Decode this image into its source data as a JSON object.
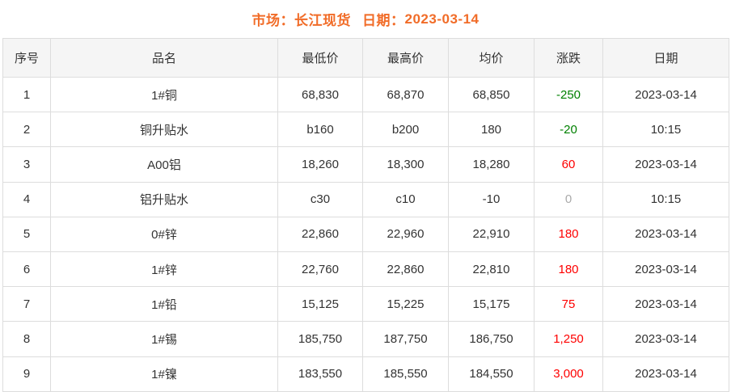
{
  "title": {
    "market_label": "市场：",
    "market_value": "长江现货",
    "date_label": "日期：",
    "date_value": "2023-03-14"
  },
  "table": {
    "columns": [
      "序号",
      "品名",
      "最低价",
      "最高价",
      "均价",
      "涨跌",
      "日期"
    ],
    "rows": [
      {
        "no": "1",
        "name": "1#铜",
        "low": "68,830",
        "high": "68,870",
        "avg": "68,850",
        "change": "-250",
        "trend": "down",
        "date": "2023-03-14"
      },
      {
        "no": "2",
        "name": "铜升贴水",
        "low": "b160",
        "high": "b200",
        "avg": "180",
        "change": "-20",
        "trend": "down",
        "date": "10:15"
      },
      {
        "no": "3",
        "name": "A00铝",
        "low": "18,260",
        "high": "18,300",
        "avg": "18,280",
        "change": "60",
        "trend": "up",
        "date": "2023-03-14"
      },
      {
        "no": "4",
        "name": "铝升贴水",
        "low": "c30",
        "high": "c10",
        "avg": "-10",
        "change": "0",
        "trend": "flat",
        "date": "10:15"
      },
      {
        "no": "5",
        "name": "0#锌",
        "low": "22,860",
        "high": "22,960",
        "avg": "22,910",
        "change": "180",
        "trend": "up",
        "date": "2023-03-14"
      },
      {
        "no": "6",
        "name": "1#锌",
        "low": "22,760",
        "high": "22,860",
        "avg": "22,810",
        "change": "180",
        "trend": "up",
        "date": "2023-03-14"
      },
      {
        "no": "7",
        "name": "1#铅",
        "low": "15,125",
        "high": "15,225",
        "avg": "15,175",
        "change": "75",
        "trend": "up",
        "date": "2023-03-14"
      },
      {
        "no": "8",
        "name": "1#锡",
        "low": "185,750",
        "high": "187,750",
        "avg": "186,750",
        "change": "1,250",
        "trend": "up",
        "date": "2023-03-14"
      },
      {
        "no": "9",
        "name": "1#镍",
        "low": "183,550",
        "high": "185,550",
        "avg": "184,550",
        "change": "3,000",
        "trend": "up",
        "date": "2023-03-14"
      }
    ]
  },
  "colors": {
    "accent_orange": "#f16c28",
    "up_red": "#fe0000",
    "down_green": "#008000",
    "flat_gray": "#aaaaaa",
    "header_bg": "#f5f5f5",
    "border": "#dddddd",
    "text": "#333333"
  }
}
